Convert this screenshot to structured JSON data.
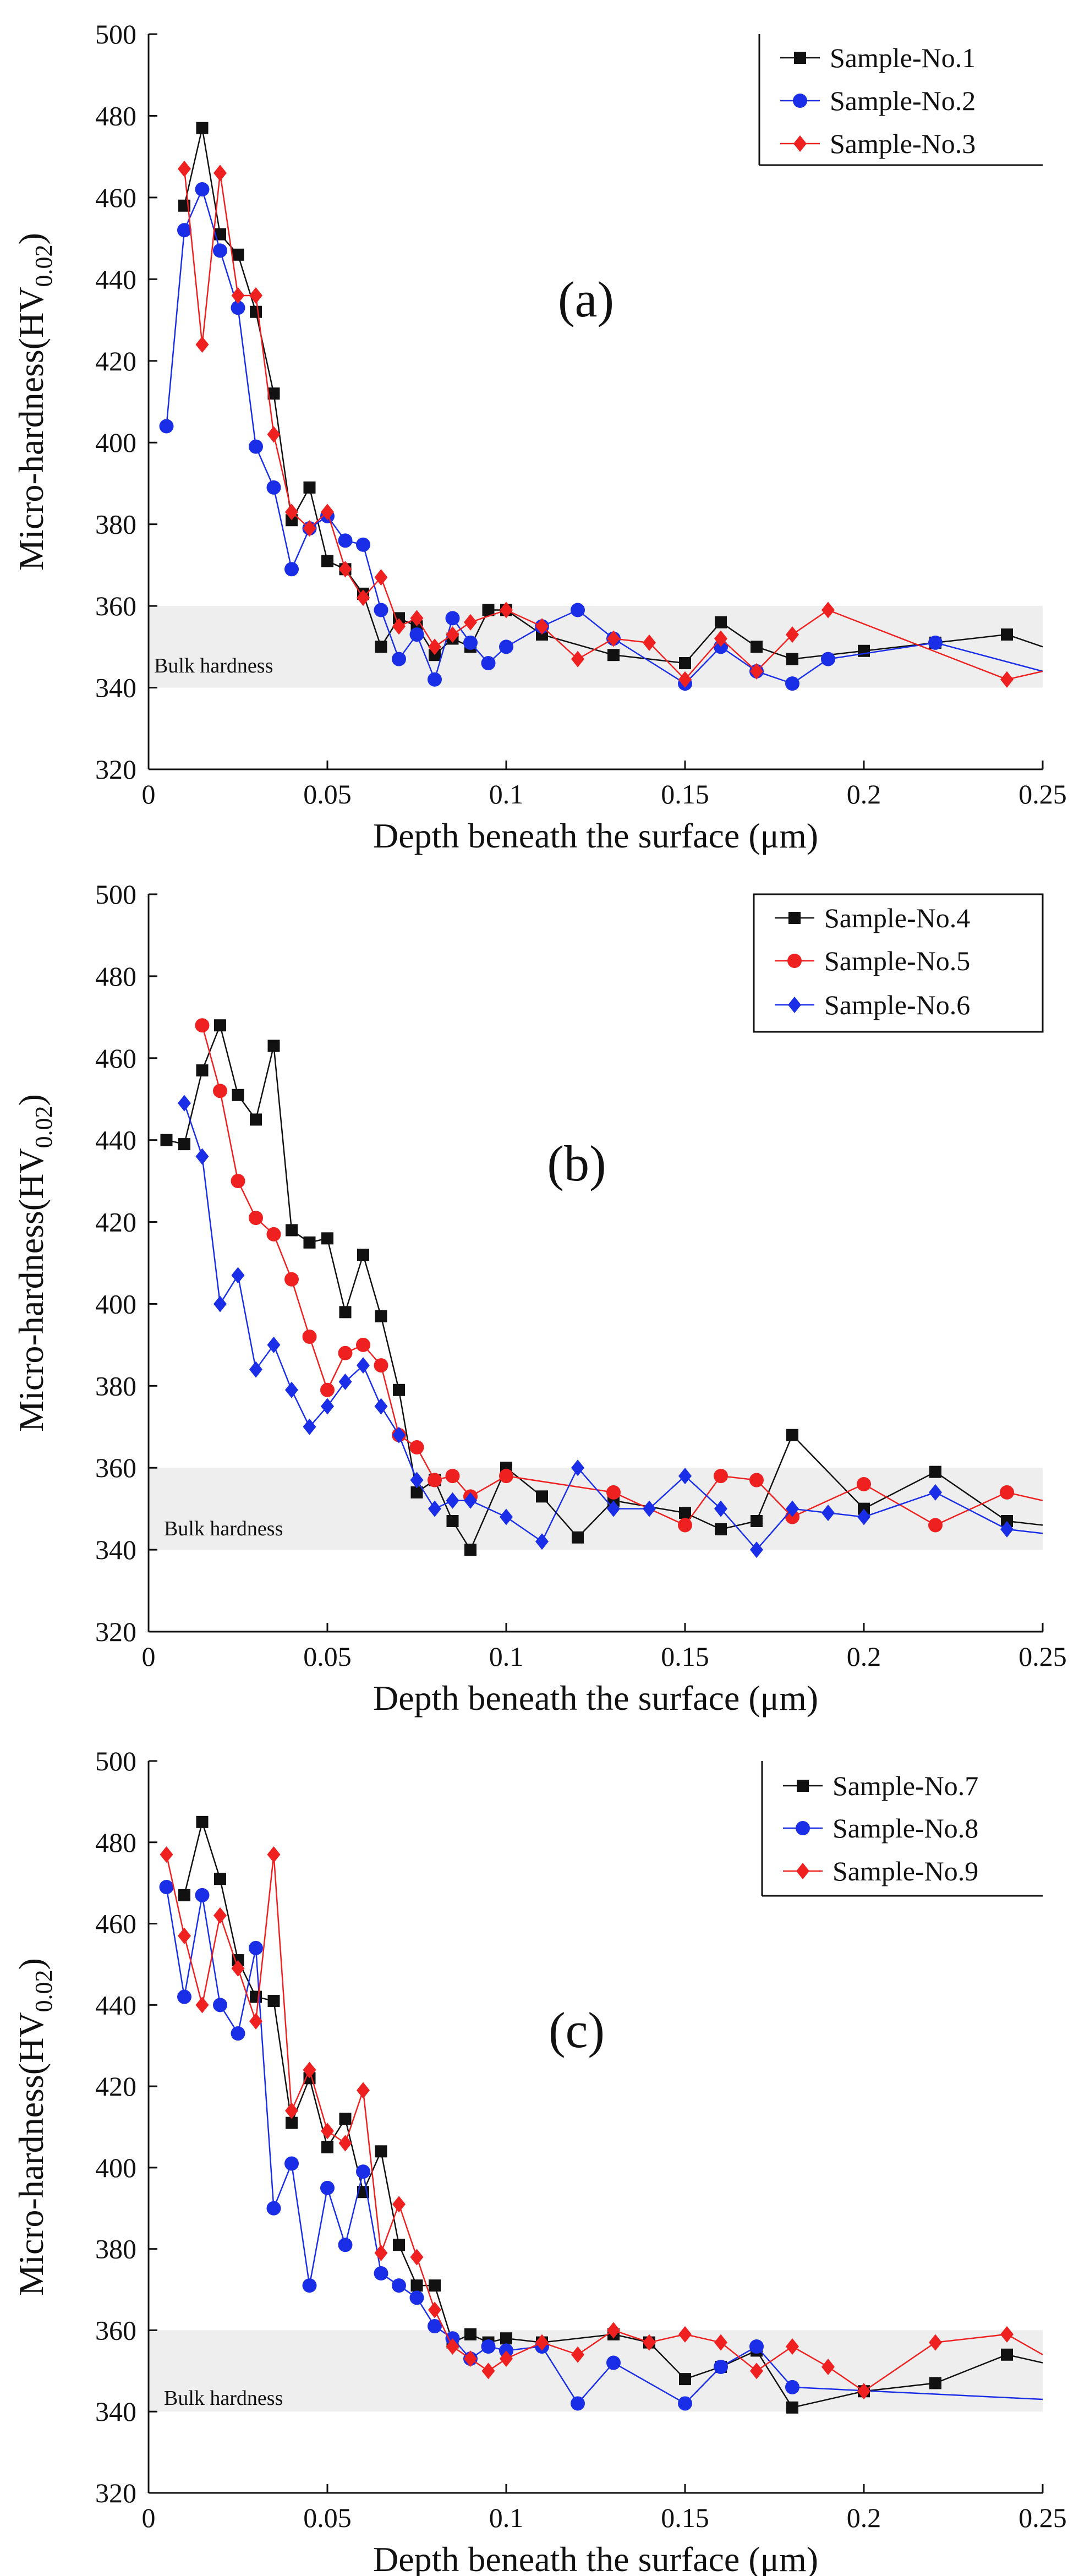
{
  "figure": {
    "band": {
      "low": 340,
      "high": 360,
      "color": "#eeeeee"
    },
    "colors": {
      "black": "#111111",
      "red": "#ee2020",
      "blue": "#1a2ee8"
    }
  },
  "chart_data": [
    {
      "type": "line",
      "panel_label": "(a)",
      "xlabel": "Depth beneath the surface (μm)",
      "ylabel": "Micro-hardness(HV",
      "ylabel_sub": "0.02",
      "ylabel_close": ")",
      "band_label": "Bulk hardness",
      "xlim": [
        0,
        0.25
      ],
      "ylim": [
        320,
        500
      ],
      "x_ticks": [
        "0",
        "0.05",
        "0.1",
        "0.15",
        "0.2",
        "0.25"
      ],
      "y_ticks": [
        "320",
        "340",
        "360",
        "380",
        "400",
        "420",
        "440",
        "460",
        "480",
        "500"
      ],
      "legend": [
        "Sample-No.1",
        "Sample-No.2",
        "Sample-No.3"
      ],
      "series": [
        {
          "name": "Sample-No.1",
          "color": "#111111",
          "marker": "square",
          "x": [
            0.01,
            0.015,
            0.02,
            0.025,
            0.03,
            0.035,
            0.04,
            0.045,
            0.05,
            0.055,
            0.06,
            0.065,
            0.07,
            0.075,
            0.08,
            0.085,
            0.09,
            0.095,
            0.1,
            0.11,
            0.13,
            0.15,
            0.16,
            0.17,
            0.18,
            0.2,
            0.22,
            0.24,
            0.25
          ],
          "y": [
            458,
            477,
            451,
            446,
            432,
            412,
            381,
            389,
            371,
            369,
            363,
            350,
            357,
            355,
            348,
            352,
            350,
            359,
            359,
            353,
            348,
            346,
            356,
            350,
            347,
            349,
            351,
            353,
            350
          ]
        },
        {
          "name": "Sample-No.2",
          "color": "#1a2ee8",
          "marker": "circle",
          "x": [
            0.005,
            0.01,
            0.015,
            0.02,
            0.025,
            0.03,
            0.035,
            0.04,
            0.045,
            0.05,
            0.055,
            0.06,
            0.065,
            0.07,
            0.075,
            0.08,
            0.085,
            0.09,
            0.095,
            0.1,
            0.11,
            0.12,
            0.13,
            0.15,
            0.16,
            0.17,
            0.18,
            0.19,
            0.22,
            0.25
          ],
          "y": [
            404,
            452,
            462,
            447,
            433,
            399,
            389,
            369,
            379,
            382,
            376,
            375,
            359,
            347,
            353,
            342,
            357,
            351,
            346,
            350,
            355,
            359,
            352,
            341,
            350,
            344,
            341,
            347,
            351,
            344
          ]
        },
        {
          "name": "Sample-No.3",
          "color": "#ee2020",
          "marker": "diamond",
          "x": [
            0.01,
            0.015,
            0.02,
            0.025,
            0.03,
            0.035,
            0.04,
            0.045,
            0.05,
            0.055,
            0.06,
            0.065,
            0.07,
            0.075,
            0.08,
            0.085,
            0.09,
            0.1,
            0.11,
            0.12,
            0.13,
            0.14,
            0.15,
            0.16,
            0.17,
            0.18,
            0.19,
            0.24,
            0.25
          ],
          "y": [
            467,
            424,
            466,
            436,
            436,
            402,
            383,
            379,
            383,
            369,
            362,
            367,
            355,
            357,
            350,
            353,
            356,
            359,
            355,
            347,
            352,
            351,
            342,
            352,
            344,
            353,
            359,
            342,
            344
          ]
        }
      ]
    },
    {
      "type": "line",
      "panel_label": "(b)",
      "xlabel": "Depth beneath the surface (μm)",
      "ylabel": "Micro-hardness(HV",
      "ylabel_sub": "0.02",
      "ylabel_close": ")",
      "band_label": "Bulk hardness",
      "xlim": [
        0,
        0.25
      ],
      "ylim": [
        320,
        500
      ],
      "x_ticks": [
        "0",
        "0.05",
        "0.1",
        "0.15",
        "0.2",
        "0.25"
      ],
      "y_ticks": [
        "320",
        "340",
        "360",
        "380",
        "400",
        "420",
        "440",
        "460",
        "480",
        "500"
      ],
      "legend": [
        "Sample-No.4",
        "Sample-No.5",
        "Sample-No.6"
      ],
      "series": [
        {
          "name": "Sample-No.4",
          "color": "#111111",
          "marker": "square",
          "x": [
            0.005,
            0.01,
            0.015,
            0.02,
            0.025,
            0.03,
            0.035,
            0.04,
            0.045,
            0.05,
            0.055,
            0.06,
            0.065,
            0.07,
            0.075,
            0.08,
            0.085,
            0.09,
            0.1,
            0.11,
            0.12,
            0.13,
            0.15,
            0.16,
            0.17,
            0.18,
            0.2,
            0.22,
            0.24,
            0.25
          ],
          "y": [
            440,
            439,
            457,
            468,
            451,
            445,
            463,
            418,
            415,
            416,
            398,
            412,
            397,
            379,
            354,
            357,
            347,
            340,
            360,
            353,
            343,
            352,
            349,
            345,
            347,
            368,
            350,
            359,
            347,
            346
          ]
        },
        {
          "name": "Sample-No.5",
          "color": "#ee2020",
          "marker": "circle",
          "x": [
            0.015,
            0.02,
            0.025,
            0.03,
            0.035,
            0.04,
            0.045,
            0.05,
            0.055,
            0.06,
            0.065,
            0.07,
            0.075,
            0.08,
            0.085,
            0.09,
            0.1,
            0.13,
            0.15,
            0.16,
            0.17,
            0.18,
            0.2,
            0.22,
            0.24,
            0.25
          ],
          "y": [
            468,
            452,
            430,
            421,
            417,
            406,
            392,
            379,
            388,
            390,
            385,
            368,
            365,
            357,
            358,
            353,
            358,
            354,
            346,
            358,
            357,
            348,
            356,
            346,
            354,
            352
          ]
        },
        {
          "name": "Sample-No.6",
          "color": "#1a2ee8",
          "marker": "diamond",
          "x": [
            0.01,
            0.015,
            0.02,
            0.025,
            0.03,
            0.035,
            0.04,
            0.045,
            0.05,
            0.055,
            0.06,
            0.065,
            0.07,
            0.075,
            0.08,
            0.085,
            0.09,
            0.1,
            0.11,
            0.12,
            0.13,
            0.14,
            0.15,
            0.16,
            0.17,
            0.18,
            0.19,
            0.2,
            0.22,
            0.24,
            0.25
          ],
          "y": [
            449,
            436,
            400,
            407,
            384,
            390,
            379,
            370,
            375,
            381,
            385,
            375,
            368,
            357,
            350,
            352,
            352,
            348,
            342,
            360,
            350,
            350,
            358,
            350,
            340,
            350,
            349,
            348,
            354,
            345,
            344
          ]
        }
      ]
    },
    {
      "type": "line",
      "panel_label": "(c)",
      "xlabel": "Depth beneath the surface (μm)",
      "ylabel": "Micro-hardness(HV",
      "ylabel_sub": "0.02",
      "ylabel_close": ")",
      "band_label": "Bulk hardness",
      "xlim": [
        0,
        0.25
      ],
      "ylim": [
        320,
        500
      ],
      "x_ticks": [
        "0",
        "0.05",
        "0.1",
        "0.15",
        "0.2",
        "0.25"
      ],
      "y_ticks": [
        "320",
        "340",
        "360",
        "380",
        "400",
        "420",
        "440",
        "460",
        "480",
        "500"
      ],
      "legend": [
        "Sample-No.7",
        "Sample-No.8",
        "Sample-No.9"
      ],
      "series": [
        {
          "name": "Sample-No.7",
          "color": "#111111",
          "marker": "square",
          "x": [
            0.01,
            0.015,
            0.02,
            0.025,
            0.03,
            0.035,
            0.04,
            0.045,
            0.05,
            0.055,
            0.06,
            0.065,
            0.07,
            0.075,
            0.08,
            0.085,
            0.09,
            0.095,
            0.1,
            0.11,
            0.13,
            0.14,
            0.15,
            0.16,
            0.17,
            0.18,
            0.2,
            0.22,
            0.24,
            0.25
          ],
          "y": [
            467,
            485,
            471,
            451,
            442,
            441,
            411,
            422,
            405,
            412,
            394,
            404,
            381,
            371,
            371,
            357,
            359,
            357,
            358,
            357,
            359,
            357,
            348,
            351,
            355,
            341,
            345,
            347,
            354,
            352
          ]
        },
        {
          "name": "Sample-No.8",
          "color": "#1a2ee8",
          "marker": "circle",
          "x": [
            0.005,
            0.01,
            0.015,
            0.02,
            0.025,
            0.03,
            0.035,
            0.04,
            0.045,
            0.05,
            0.055,
            0.06,
            0.065,
            0.07,
            0.075,
            0.08,
            0.085,
            0.09,
            0.095,
            0.1,
            0.11,
            0.12,
            0.13,
            0.15,
            0.16,
            0.17,
            0.18,
            0.25
          ],
          "y": [
            469,
            442,
            467,
            440,
            433,
            454,
            390,
            401,
            371,
            395,
            381,
            399,
            374,
            371,
            368,
            361,
            358,
            353,
            356,
            355,
            356,
            342,
            352,
            342,
            351,
            356,
            346,
            343
          ]
        },
        {
          "name": "Sample-No.9",
          "color": "#ee2020",
          "marker": "diamond",
          "x": [
            0.005,
            0.01,
            0.015,
            0.02,
            0.025,
            0.03,
            0.035,
            0.04,
            0.045,
            0.05,
            0.055,
            0.06,
            0.065,
            0.07,
            0.075,
            0.08,
            0.085,
            0.09,
            0.095,
            0.1,
            0.11,
            0.12,
            0.13,
            0.14,
            0.15,
            0.16,
            0.17,
            0.18,
            0.19,
            0.2,
            0.22,
            0.24,
            0.25
          ],
          "y": [
            477,
            457,
            440,
            462,
            449,
            436,
            477,
            414,
            424,
            409,
            406,
            419,
            379,
            391,
            378,
            365,
            356,
            353,
            350,
            353,
            357,
            354,
            360,
            357,
            359,
            357,
            350,
            356,
            351,
            345,
            357,
            359,
            354
          ]
        }
      ]
    }
  ]
}
